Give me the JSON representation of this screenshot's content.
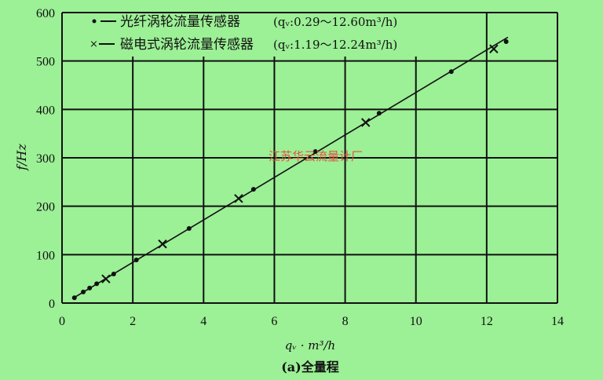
{
  "chart_data": {
    "type": "scatter",
    "title": "",
    "caption": "(a)全量程",
    "xlabel": "qᵥ · m³/h",
    "ylabel": "f/Hz",
    "xlim": [
      0,
      14
    ],
    "ylim": [
      0,
      600
    ],
    "xticks": [
      "0",
      "2",
      "4",
      "6",
      "8",
      "10",
      "12",
      "14"
    ],
    "yticks": [
      "0",
      "100",
      "200",
      "300",
      "400",
      "500",
      "600"
    ],
    "grid": true,
    "legend_position": "top",
    "series": [
      {
        "name": "光纤涡轮流量传感器",
        "range_label": "(qᵥ:0.29～12.60m³/h)",
        "marker": "dot",
        "x": [
          0.35,
          0.6,
          0.78,
          0.98,
          1.46,
          2.1,
          3.59,
          5.41,
          7.16,
          8.96,
          11.0,
          12.55
        ],
        "y": [
          11,
          23,
          31,
          40,
          60,
          89,
          154,
          235,
          313,
          392,
          478,
          540
        ]
      },
      {
        "name": "磁电式涡轮流量传感器",
        "range_label": "(qᵥ:1.19～12.24m³/h)",
        "marker": "cross",
        "x": [
          1.24,
          2.84,
          4.99,
          8.58,
          12.2
        ],
        "y": [
          50,
          122,
          216,
          373,
          525
        ]
      }
    ],
    "fit_line": {
      "x": [
        0.29,
        12.6
      ],
      "y": [
        9,
        549
      ]
    },
    "watermark": "江苏华云流量计厂",
    "colors": {
      "background": "#9cf096",
      "ink": "#111111",
      "watermark": "#e0533e"
    }
  }
}
